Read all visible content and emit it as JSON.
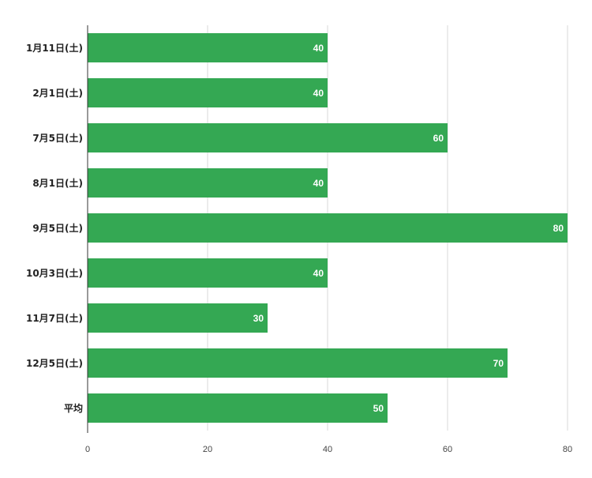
{
  "chart_data": {
    "type": "bar",
    "orientation": "horizontal",
    "categories": [
      "1月11日(土)",
      "2月1日(土)",
      "7月5日(土)",
      "8月1日(土)",
      "9月5日(土)",
      "10月3日(土)",
      "11月7日(土)",
      "12月5日(土)",
      "平均"
    ],
    "values": [
      40,
      40,
      60,
      40,
      80,
      40,
      30,
      70,
      50
    ],
    "title": "",
    "xlabel": "",
    "ylabel": "",
    "xlim": [
      0,
      80
    ],
    "xticks": [
      0,
      20,
      40,
      60,
      80
    ],
    "grid": "vertical",
    "legend": "none",
    "colors": {
      "bar": "#34a853",
      "grid": "#d9d9d9",
      "axis": "#333333"
    }
  }
}
